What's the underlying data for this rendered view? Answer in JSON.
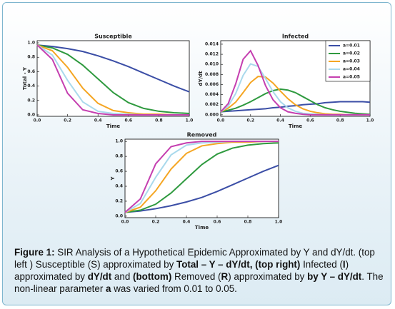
{
  "chart_data": [
    {
      "type": "line",
      "title": "Susceptible",
      "xlabel": "Time",
      "ylabel": "Total - Y",
      "grid": false,
      "x": [
        0,
        0.1,
        0.2,
        0.3,
        0.4,
        0.5,
        0.6,
        0.7,
        0.8,
        0.9,
        1
      ],
      "xlim": [
        0,
        1
      ],
      "xticks": [
        {
          "value": 0,
          "label": "0.0"
        },
        0.2,
        0.4,
        0.6,
        0.8,
        {
          "value": 1,
          "label": "1.0"
        }
      ],
      "ylim": [
        -0.02,
        1.03
      ],
      "yticks": [
        {
          "value": 0,
          "label": "0.0"
        },
        0.2,
        0.4,
        0.6,
        0.8,
        {
          "value": 1,
          "label": "1.0"
        }
      ],
      "series": [
        {
          "color": "#3b4ea6",
          "values": [
            0.97,
            0.95,
            0.92,
            0.88,
            0.82,
            0.75,
            0.67,
            0.58,
            0.49,
            0.4,
            0.32
          ]
        },
        {
          "color": "#2f9a3f",
          "values": [
            0.97,
            0.93,
            0.84,
            0.69,
            0.5,
            0.31,
            0.17,
            0.09,
            0.05,
            0.03,
            0.02
          ]
        },
        {
          "color": "#f5a623",
          "values": [
            0.97,
            0.89,
            0.66,
            0.37,
            0.16,
            0.06,
            0.03,
            0.01,
            0.01,
            0,
            0
          ]
        },
        {
          "color": "#a9d9ec",
          "values": [
            0.97,
            0.83,
            0.48,
            0.18,
            0.05,
            0.02,
            0.01,
            0,
            0,
            0,
            0
          ]
        },
        {
          "color": "#c53fb0",
          "values": [
            0.97,
            0.77,
            0.3,
            0.07,
            0.02,
            0,
            0,
            0,
            0,
            0,
            0
          ]
        }
      ]
    },
    {
      "type": "line",
      "title": "Infected",
      "xlabel": "Time",
      "ylabel": "dY/dt",
      "grid": false,
      "legend": "upper right",
      "x": [
        0,
        0.05,
        0.1,
        0.15,
        0.2,
        0.25,
        0.3,
        0.35,
        0.4,
        0.45,
        0.5,
        0.55,
        0.6,
        0.65,
        0.7,
        0.75,
        0.8,
        0.85,
        0.9,
        0.95,
        1
      ],
      "xlim": [
        0,
        1
      ],
      "xticks": [
        {
          "value": 0,
          "label": "0.0"
        },
        0.2,
        0.4,
        0.6,
        0.8,
        {
          "value": 1,
          "label": "1.0"
        }
      ],
      "ylim": [
        -0.0003,
        0.0147
      ],
      "yticks": [
        {
          "value": 0,
          "label": "0.000"
        },
        0.002,
        0.004,
        0.006,
        0.008,
        {
          "value": 0.01,
          "label": "0.010"
        },
        0.012,
        0.014
      ],
      "series": [
        {
          "name": "a=0.01",
          "color": "#3b4ea6",
          "values": [
            0.0006,
            0.0007,
            0.0008,
            0.0009,
            0.001,
            0.0011,
            0.0012,
            0.0014,
            0.0015,
            0.0017,
            0.0018,
            0.002,
            0.0021,
            0.0022,
            0.0024,
            0.0025,
            0.0026,
            0.0026,
            0.0026,
            0.0026,
            0.0025
          ]
        },
        {
          "name": "a=0.02",
          "color": "#2f9a3f",
          "values": [
            0.0006,
            0.0009,
            0.0013,
            0.0019,
            0.0026,
            0.0034,
            0.0042,
            0.0048,
            0.0051,
            0.0049,
            0.0044,
            0.0036,
            0.0028,
            0.002,
            0.0014,
            0.001,
            0.0007,
            0.0005,
            0.0003,
            0.0002,
            0.0001
          ]
        },
        {
          "name": "a=0.03",
          "color": "#f5a623",
          "values": [
            0.0006,
            0.0013,
            0.0025,
            0.0044,
            0.0064,
            0.0076,
            0.0075,
            0.0063,
            0.0047,
            0.0032,
            0.002,
            0.0012,
            0.0007,
            0.0004,
            0.0002,
            0.0001,
            0.0001,
            0,
            0,
            0,
            0
          ]
        },
        {
          "name": "a=0.04",
          "color": "#a9d9ec",
          "values": [
            0.0006,
            0.0017,
            0.0042,
            0.0078,
            0.0101,
            0.0096,
            0.0072,
            0.0046,
            0.0026,
            0.0014,
            0.0007,
            0.0003,
            0.0002,
            0.0001,
            0,
            0,
            0,
            0,
            0,
            0,
            0
          ]
        },
        {
          "name": "a=0.05",
          "color": "#c53fb0",
          "values": [
            0.0006,
            0.0022,
            0.0061,
            0.011,
            0.0127,
            0.0098,
            0.0058,
            0.003,
            0.0014,
            0.0006,
            0.0003,
            0.0001,
            0,
            0,
            0,
            0,
            0,
            0,
            0,
            0,
            0
          ]
        }
      ]
    },
    {
      "type": "line",
      "title": "Removed",
      "xlabel": "Time",
      "ylabel": "Y",
      "grid": false,
      "x": [
        0,
        0.1,
        0.2,
        0.3,
        0.4,
        0.5,
        0.6,
        0.7,
        0.8,
        0.9,
        1
      ],
      "xlim": [
        0,
        1
      ],
      "xticks": [
        {
          "value": 0,
          "label": "0.0"
        },
        0.2,
        0.4,
        0.6,
        0.8,
        {
          "value": 1,
          "label": "1.0"
        }
      ],
      "ylim": [
        -0.02,
        1.03
      ],
      "yticks": [
        {
          "value": 0,
          "label": "0.0"
        },
        0.2,
        0.4,
        0.6,
        0.8,
        {
          "value": 1,
          "label": "1.0"
        }
      ],
      "series": [
        {
          "color": "#3b4ea6",
          "values": [
            0.05,
            0.07,
            0.1,
            0.14,
            0.19,
            0.25,
            0.33,
            0.42,
            0.51,
            0.6,
            0.68
          ]
        },
        {
          "color": "#2f9a3f",
          "values": [
            0.05,
            0.08,
            0.16,
            0.31,
            0.5,
            0.69,
            0.83,
            0.91,
            0.95,
            0.97,
            0.98
          ]
        },
        {
          "color": "#f5a623",
          "values": [
            0.05,
            0.12,
            0.34,
            0.63,
            0.84,
            0.94,
            0.97,
            0.99,
            0.99,
            1,
            1
          ]
        },
        {
          "color": "#a9d9ec",
          "values": [
            0.05,
            0.17,
            0.52,
            0.82,
            0.95,
            0.98,
            0.99,
            1,
            1,
            1,
            1
          ]
        },
        {
          "color": "#c53fb0",
          "values": [
            0.05,
            0.23,
            0.7,
            0.93,
            0.98,
            1,
            1,
            1,
            1,
            1,
            1
          ]
        }
      ]
    }
  ],
  "caption": [
    {
      "text": "Figure 1:",
      "bold": true
    },
    {
      "text": " SIR Analysis of a Hypothetical Epidemic Approximated by Y and dY/dt. (top left ) Susceptible (S) approximated by ",
      "bold": false
    },
    {
      "text": "Total – Y – dY/dt, (top right)",
      "bold": true
    },
    {
      "text": " Infected (",
      "bold": false
    },
    {
      "text": "I",
      "bold": true
    },
    {
      "text": ") approximated by ",
      "bold": false
    },
    {
      "text": "dY/dt",
      "bold": true
    },
    {
      "text": " and ",
      "bold": false
    },
    {
      "text": "(bottom)",
      "bold": true
    },
    {
      "text": " Removed (",
      "bold": false
    },
    {
      "text": "R",
      "bold": true
    },
    {
      "text": ") approximated by ",
      "bold": false
    },
    {
      "text": "by Y – dY/dt",
      "bold": true
    },
    {
      "text": ". The non-linear parameter ",
      "bold": false
    },
    {
      "text": "a",
      "bold": true
    },
    {
      "text": " was varied from 0.01 to 0.05.",
      "bold": false
    }
  ]
}
